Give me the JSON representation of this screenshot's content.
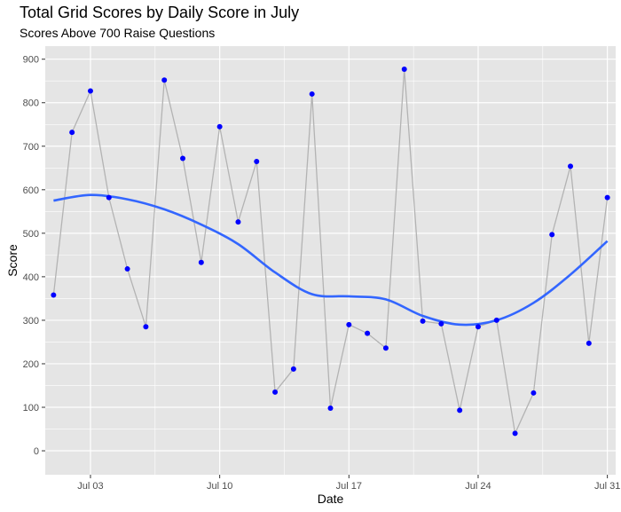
{
  "chart_data": {
    "type": "line",
    "title": "Total Grid Scores by Daily Score in July",
    "subtitle": "Scores Above 700 Raise Questions",
    "xlabel": "Date",
    "ylabel": "Score",
    "x_ticks": [
      {
        "date": "2023-07-03",
        "label": "Jul 03"
      },
      {
        "date": "2023-07-10",
        "label": "Jul 10"
      },
      {
        "date": "2023-07-17",
        "label": "Jul 17"
      },
      {
        "date": "2023-07-24",
        "label": "Jul 24"
      },
      {
        "date": "2023-07-31",
        "label": "Jul 31"
      }
    ],
    "xlim": [
      "2023-06-30",
      "2023-07-31"
    ],
    "ylim": [
      -55,
      930
    ],
    "y_ticks": [
      0,
      100,
      200,
      300,
      400,
      500,
      600,
      700,
      800,
      900
    ],
    "grid": true,
    "colors": {
      "panel": "#e5e5e5",
      "grid": "#ffffff",
      "points": "#0000ff",
      "line": "#b3b3b3",
      "smooth": "#3366ff"
    },
    "series": [
      {
        "type": "line+points",
        "x": [
          "2023-07-01",
          "2023-07-02",
          "2023-07-03",
          "2023-07-04",
          "2023-07-05",
          "2023-07-06",
          "2023-07-07",
          "2023-07-08",
          "2023-07-09",
          "2023-07-10",
          "2023-07-11",
          "2023-07-12",
          "2023-07-13",
          "2023-07-14",
          "2023-07-15",
          "2023-07-16",
          "2023-07-17",
          "2023-07-18",
          "2023-07-19",
          "2023-07-20",
          "2023-07-21",
          "2023-07-22",
          "2023-07-23",
          "2023-07-24",
          "2023-07-25",
          "2023-07-26",
          "2023-07-27",
          "2023-07-28",
          "2023-07-29",
          "2023-07-30",
          "2023-07-31"
        ],
        "values": [
          358,
          732,
          827,
          582,
          418,
          285,
          852,
          672,
          433,
          745,
          526,
          665,
          135,
          188,
          820,
          98,
          290,
          270,
          236,
          877,
          298,
          292,
          93,
          285,
          300,
          40,
          133,
          497,
          654,
          247,
          582
        ]
      },
      {
        "type": "smooth",
        "x": [
          "2023-07-01",
          "2023-07-03",
          "2023-07-05",
          "2023-07-07",
          "2023-07-09",
          "2023-07-11",
          "2023-07-13",
          "2023-07-15",
          "2023-07-17",
          "2023-07-19",
          "2023-07-21",
          "2023-07-23",
          "2023-07-25",
          "2023-07-27",
          "2023-07-29",
          "2023-07-31"
        ],
        "values": [
          575,
          588,
          578,
          555,
          520,
          475,
          410,
          360,
          355,
          348,
          310,
          290,
          300,
          340,
          405,
          482
        ]
      }
    ]
  }
}
